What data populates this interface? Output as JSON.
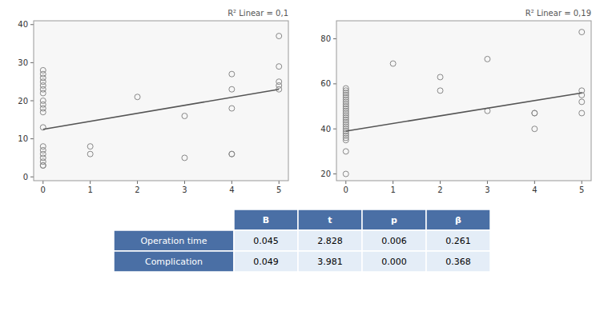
{
  "chart_data": [
    {
      "type": "scatter",
      "annotation": "R² Linear = 0,1",
      "xlim": [
        -0.2,
        5.2
      ],
      "ylim": [
        -1,
        41
      ],
      "xticks": [
        0,
        1,
        2,
        3,
        4,
        5
      ],
      "yticks": [
        0,
        10,
        20,
        30,
        40
      ],
      "grid": false,
      "series": [
        {
          "type": "scatter",
          "color": "#888888",
          "x": [
            0,
            0,
            0,
            0,
            0,
            0,
            0,
            0,
            0,
            0,
            0,
            0,
            0,
            0,
            0,
            0,
            0,
            0,
            0,
            1,
            1,
            2,
            3,
            3,
            4,
            4,
            4,
            4,
            4,
            5,
            5,
            5,
            5,
            5
          ],
          "values": [
            28,
            27,
            26,
            25,
            24,
            23,
            22,
            20,
            19,
            18,
            17,
            8,
            7,
            6,
            5,
            4,
            3,
            3,
            13,
            8,
            6,
            21,
            5,
            16,
            6,
            6,
            18,
            23,
            27,
            37,
            29,
            25,
            24,
            23
          ]
        },
        {
          "type": "line",
          "color": "#555555",
          "x": [
            0,
            5
          ],
          "values": [
            12.5,
            23.0
          ]
        }
      ]
    },
    {
      "type": "scatter",
      "annotation": "R² Linear = 0,19",
      "xlim": [
        -0.2,
        5.2
      ],
      "ylim": [
        17,
        88
      ],
      "xticks": [
        0,
        1,
        2,
        3,
        4,
        5
      ],
      "yticks": [
        20,
        40,
        60,
        80
      ],
      "grid": false,
      "series": [
        {
          "type": "scatter",
          "color": "#888888",
          "x": [
            0,
            0,
            0,
            0,
            0,
            0,
            0,
            0,
            0,
            0,
            0,
            0,
            0,
            0,
            0,
            0,
            0,
            0,
            0,
            0,
            0,
            0,
            0,
            0,
            0,
            0,
            1,
            2,
            2,
            3,
            3,
            4,
            4,
            4,
            5,
            5,
            5,
            5,
            5
          ],
          "values": [
            58,
            57,
            56,
            55,
            54,
            53,
            52,
            51,
            50,
            49,
            48,
            47,
            46,
            45,
            44,
            43,
            42,
            41,
            40,
            39,
            38,
            37,
            36,
            35,
            30,
            20,
            69,
            63,
            57,
            48,
            71,
            47,
            47,
            40,
            83,
            57,
            55,
            52,
            47
          ]
        },
        {
          "type": "line",
          "color": "#555555",
          "x": [
            0,
            5
          ],
          "values": [
            39.0,
            56.0
          ]
        }
      ]
    },
    {
      "type": "table",
      "columns": [
        "B",
        "t",
        "p",
        "β"
      ],
      "rows": [
        {
          "label": "Operation time",
          "cells": [
            "0.045",
            "2.828",
            "0.006",
            "0.261"
          ]
        },
        {
          "label": "Complication",
          "cells": [
            "0.049",
            "3.981",
            "0.000",
            "0.368"
          ]
        }
      ]
    }
  ]
}
